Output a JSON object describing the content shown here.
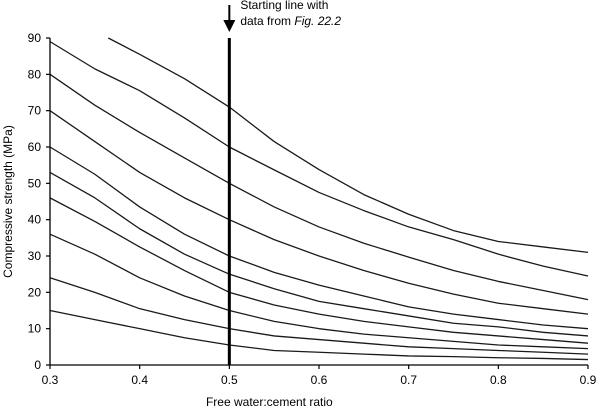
{
  "chart_data": {
    "type": "line",
    "title": "",
    "xlabel": "Free water:cement ratio",
    "ylabel": "Compressive strength (MPa)",
    "xlim": [
      0.3,
      0.9
    ],
    "ylim": [
      0,
      90
    ],
    "xticks": [
      0.3,
      0.4,
      0.5,
      0.6,
      0.7,
      0.8,
      0.9
    ],
    "yticks": [
      0,
      10,
      20,
      30,
      40,
      50,
      60,
      70,
      80,
      90
    ],
    "grid": false,
    "legend": "none",
    "colors": {
      "curve": "#1a1a1a",
      "axes": "#000000",
      "starting_line": "#000000"
    },
    "starting_line": {
      "x": 0.5,
      "label_line1": "Starting line with",
      "label_line2_prefix": "data from ",
      "label_line2_italic": "Fig. 22.2"
    },
    "series": [
      {
        "values": [
          [
            0.365,
            90
          ],
          [
            0.4,
            85.5
          ],
          [
            0.45,
            78.8
          ],
          [
            0.5,
            71
          ],
          [
            0.55,
            61.5
          ],
          [
            0.6,
            53.8
          ],
          [
            0.65,
            46.9
          ],
          [
            0.7,
            41.5
          ],
          [
            0.75,
            37
          ],
          [
            0.8,
            34
          ],
          [
            0.85,
            32.5
          ],
          [
            0.9,
            31
          ]
        ]
      },
      {
        "values": [
          [
            0.3,
            89
          ],
          [
            0.35,
            81.5
          ],
          [
            0.4,
            75.5
          ],
          [
            0.45,
            68
          ],
          [
            0.5,
            60
          ],
          [
            0.55,
            53.7
          ],
          [
            0.6,
            47.5
          ],
          [
            0.65,
            42.5
          ],
          [
            0.7,
            38
          ],
          [
            0.75,
            34.5
          ],
          [
            0.8,
            30.5
          ],
          [
            0.85,
            27.2
          ],
          [
            0.9,
            24.5
          ]
        ]
      },
      {
        "values": [
          [
            0.3,
            80
          ],
          [
            0.35,
            71.5
          ],
          [
            0.4,
            64
          ],
          [
            0.45,
            57
          ],
          [
            0.5,
            50
          ],
          [
            0.55,
            43.5
          ],
          [
            0.6,
            38
          ],
          [
            0.65,
            33.5
          ],
          [
            0.7,
            29.7
          ],
          [
            0.75,
            26
          ],
          [
            0.8,
            23
          ],
          [
            0.85,
            20.5
          ],
          [
            0.9,
            18
          ]
        ]
      },
      {
        "values": [
          [
            0.3,
            70
          ],
          [
            0.35,
            61.5
          ],
          [
            0.4,
            53
          ],
          [
            0.45,
            46
          ],
          [
            0.5,
            40
          ],
          [
            0.55,
            34.5
          ],
          [
            0.6,
            30
          ],
          [
            0.65,
            26
          ],
          [
            0.7,
            22.5
          ],
          [
            0.75,
            19.5
          ],
          [
            0.8,
            17
          ],
          [
            0.85,
            15.5
          ],
          [
            0.9,
            14
          ]
        ]
      },
      {
        "values": [
          [
            0.3,
            60
          ],
          [
            0.35,
            52.5
          ],
          [
            0.4,
            43.5
          ],
          [
            0.45,
            36
          ],
          [
            0.5,
            30
          ],
          [
            0.55,
            25.5
          ],
          [
            0.6,
            22
          ],
          [
            0.65,
            19
          ],
          [
            0.7,
            16
          ],
          [
            0.75,
            14
          ],
          [
            0.8,
            12.5
          ],
          [
            0.85,
            11
          ],
          [
            0.9,
            10
          ]
        ]
      },
      {
        "values": [
          [
            0.3,
            53
          ],
          [
            0.35,
            46
          ],
          [
            0.4,
            37.5
          ],
          [
            0.45,
            30.5
          ],
          [
            0.5,
            25
          ],
          [
            0.55,
            21
          ],
          [
            0.6,
            17.5
          ],
          [
            0.65,
            15.5
          ],
          [
            0.7,
            13.5
          ],
          [
            0.75,
            11.5
          ],
          [
            0.8,
            10.5
          ],
          [
            0.85,
            9
          ],
          [
            0.9,
            8
          ]
        ]
      },
      {
        "values": [
          [
            0.3,
            46
          ],
          [
            0.35,
            39.5
          ],
          [
            0.4,
            32.5
          ],
          [
            0.45,
            26
          ],
          [
            0.5,
            20
          ],
          [
            0.55,
            16.5
          ],
          [
            0.6,
            14
          ],
          [
            0.65,
            12
          ],
          [
            0.7,
            10.5
          ],
          [
            0.75,
            9
          ],
          [
            0.8,
            8
          ],
          [
            0.85,
            7
          ],
          [
            0.9,
            6
          ]
        ]
      },
      {
        "values": [
          [
            0.3,
            36
          ],
          [
            0.35,
            30.5
          ],
          [
            0.4,
            24
          ],
          [
            0.45,
            19
          ],
          [
            0.5,
            15
          ],
          [
            0.55,
            12
          ],
          [
            0.6,
            10
          ],
          [
            0.65,
            8.5
          ],
          [
            0.7,
            7.5
          ],
          [
            0.75,
            6.5
          ],
          [
            0.8,
            5.5
          ],
          [
            0.85,
            5
          ],
          [
            0.9,
            4.5
          ]
        ]
      },
      {
        "values": [
          [
            0.3,
            24
          ],
          [
            0.35,
            20
          ],
          [
            0.4,
            15.5
          ],
          [
            0.45,
            12.5
          ],
          [
            0.5,
            10
          ],
          [
            0.55,
            8
          ],
          [
            0.6,
            7
          ],
          [
            0.65,
            6
          ],
          [
            0.7,
            5
          ],
          [
            0.75,
            4.5
          ],
          [
            0.8,
            4
          ],
          [
            0.85,
            3.5
          ],
          [
            0.9,
            3
          ]
        ]
      },
      {
        "values": [
          [
            0.3,
            15
          ],
          [
            0.35,
            12.5
          ],
          [
            0.4,
            10
          ],
          [
            0.45,
            7.5
          ],
          [
            0.5,
            5.5
          ],
          [
            0.55,
            4
          ],
          [
            0.6,
            3.5
          ],
          [
            0.65,
            3
          ],
          [
            0.7,
            2.5
          ],
          [
            0.75,
            2.3
          ],
          [
            0.8,
            2
          ],
          [
            0.85,
            1.8
          ],
          [
            0.9,
            1.5
          ]
        ]
      }
    ]
  }
}
